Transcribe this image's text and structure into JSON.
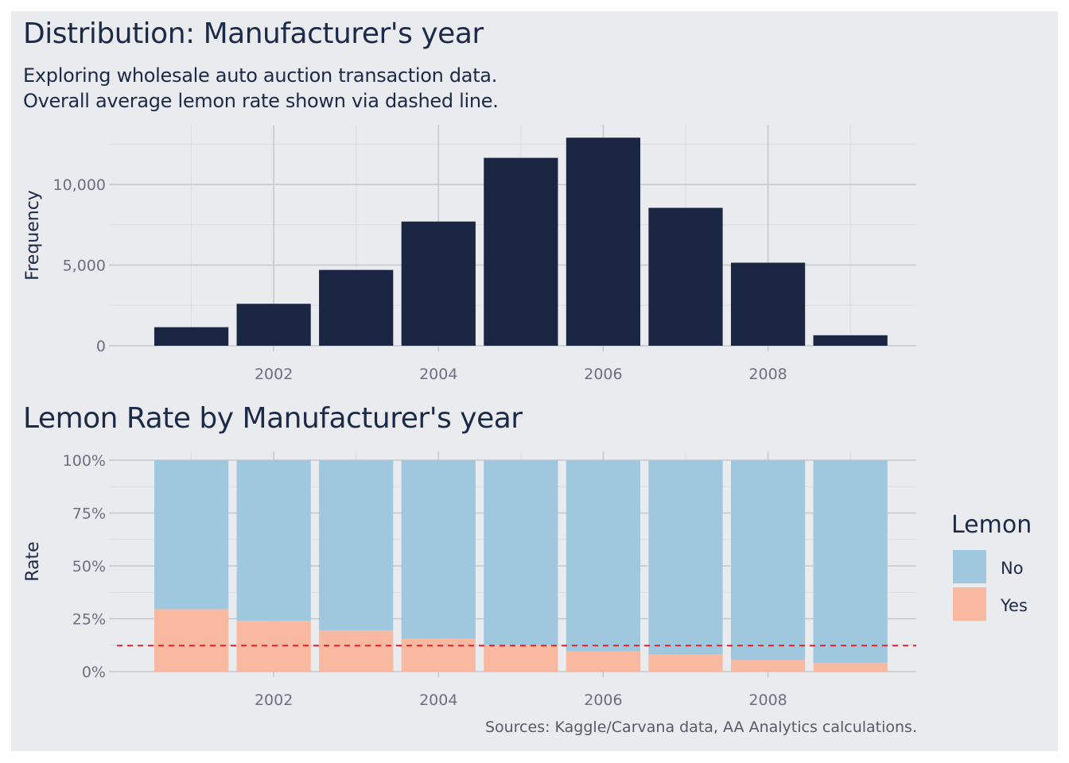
{
  "header": {
    "title": "Distribution: Manufacturer's year",
    "subtitle_line1": "Exploring wholesale auto auction transaction data.",
    "subtitle_line2": "Overall average lemon rate shown via dashed line."
  },
  "lower": {
    "title": "Lemon Rate by Manufacturer's year"
  },
  "caption": "Sources: Kaggle/Carvana data, AA Analytics calculations.",
  "colors": {
    "bar": "#1b2742",
    "no": "#9fc8df",
    "yes": "#f9b9a0",
    "average_line": "#e8131e",
    "background": "#eaebef",
    "grid_major": "#c4c7cd",
    "grid_minor": "#d9dbe0",
    "tick_text": "#6b7080",
    "axis_title": "#1b2a49"
  },
  "chart_data": [
    {
      "type": "bar",
      "title": "Distribution: Manufacturer's year",
      "xlabel": "",
      "ylabel": "Frequency",
      "categories": [
        2001,
        2002,
        2003,
        2004,
        2005,
        2006,
        2007,
        2008,
        2009
      ],
      "values": [
        1150,
        2600,
        4700,
        7700,
        11650,
        12900,
        8550,
        5150,
        650
      ],
      "xlim": [
        2000.0,
        2009.8
      ],
      "ylim": [
        0,
        13700
      ],
      "x_ticks": [
        2002,
        2004,
        2006,
        2008
      ],
      "x_tick_labels": [
        "2002",
        "2004",
        "2006",
        "2008"
      ],
      "y_ticks": [
        0,
        5000,
        10000
      ],
      "y_tick_labels": [
        "0",
        "5,000",
        "10,000"
      ],
      "grid": true
    },
    {
      "type": "bar",
      "stacked": true,
      "title": "Lemon Rate by Manufacturer's year",
      "xlabel": "",
      "ylabel": "Rate",
      "categories": [
        2001,
        2002,
        2003,
        2004,
        2005,
        2006,
        2007,
        2008,
        2009
      ],
      "series": [
        {
          "name": "No",
          "values": [
            0.705,
            0.76,
            0.805,
            0.845,
            0.875,
            0.905,
            0.92,
            0.945,
            0.96
          ]
        },
        {
          "name": "Yes",
          "values": [
            0.295,
            0.24,
            0.195,
            0.155,
            0.125,
            0.095,
            0.08,
            0.055,
            0.04
          ]
        }
      ],
      "average_rate": 0.123,
      "xlim": [
        2000.0,
        2009.8
      ],
      "ylim": [
        0,
        1
      ],
      "x_ticks": [
        2002,
        2004,
        2006,
        2008
      ],
      "x_tick_labels": [
        "2002",
        "2004",
        "2006",
        "2008"
      ],
      "y_ticks": [
        0,
        0.25,
        0.5,
        0.75,
        1
      ],
      "y_tick_labels": [
        "0%",
        "25%",
        "50%",
        "75%",
        "100%"
      ],
      "legend": {
        "title": "Lemon",
        "entries": [
          "No",
          "Yes"
        ],
        "placement": "right"
      },
      "grid": true
    }
  ]
}
